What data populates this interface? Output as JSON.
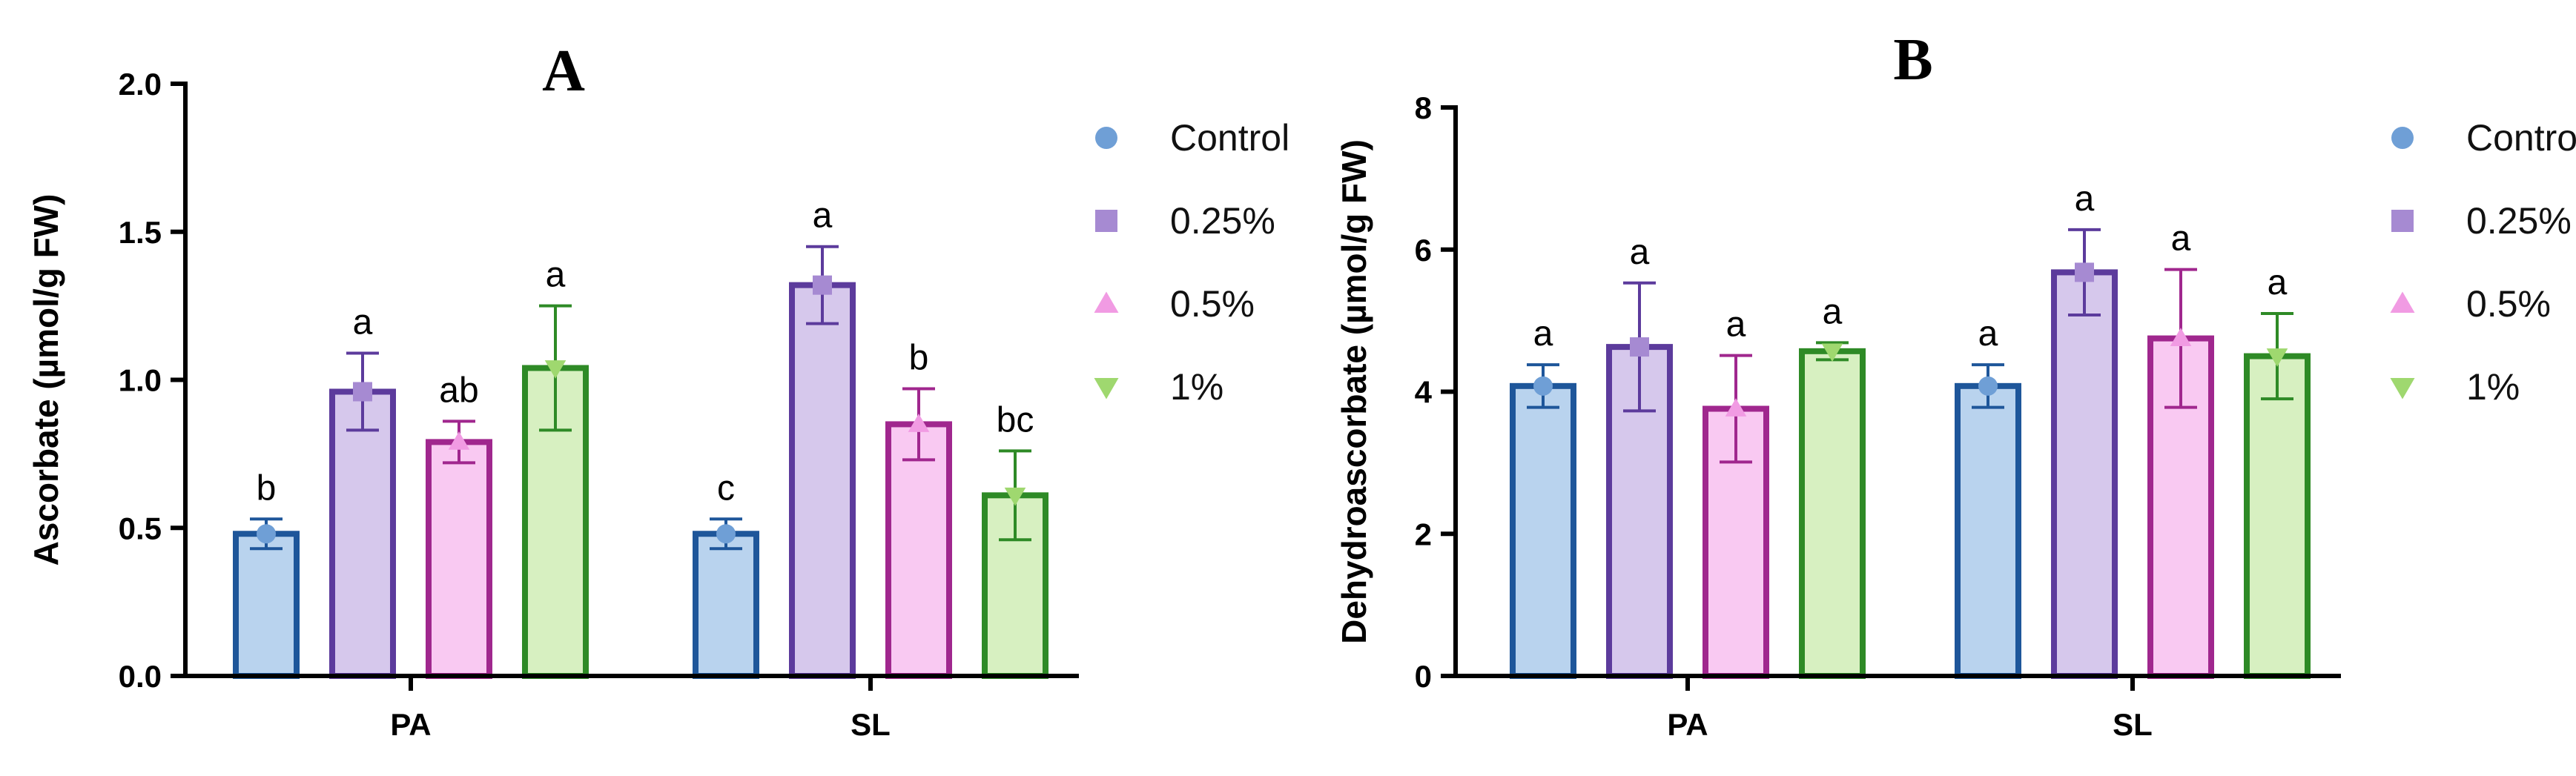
{
  "chart_data": [
    {
      "type": "bar",
      "title": "A",
      "ylabel": "Ascorbate (µmol/g FW)",
      "categories": [
        "PA",
        "SL"
      ],
      "ylim": [
        0,
        2.0
      ],
      "yticks": [
        "0.0",
        "0.5",
        "1.0",
        "1.5",
        "2.0"
      ],
      "error_bars": true,
      "legend_position": "right",
      "series": [
        {
          "name": "Control",
          "values": [
            0.48,
            0.48
          ],
          "errors": [
            0.05,
            0.05
          ],
          "letters": [
            "b",
            "c"
          ]
        },
        {
          "name": "0.25%",
          "values": [
            0.96,
            1.32
          ],
          "errors": [
            0.13,
            0.13
          ],
          "letters": [
            "a",
            "a"
          ]
        },
        {
          "name": "0.5%",
          "values": [
            0.79,
            0.85
          ],
          "errors": [
            0.07,
            0.12
          ],
          "letters": [
            "ab",
            "b"
          ]
        },
        {
          "name": "1%",
          "values": [
            1.04,
            0.61
          ],
          "errors": [
            0.21,
            0.15
          ],
          "letters": [
            "a",
            "bc"
          ]
        }
      ]
    },
    {
      "type": "bar",
      "title": "B",
      "ylabel": "Dehydroascorbate (µmol/g FW)",
      "categories": [
        "PA",
        "SL"
      ],
      "ylim": [
        0,
        8
      ],
      "yticks": [
        "0",
        "2",
        "4",
        "6",
        "8"
      ],
      "error_bars": true,
      "legend_position": "right",
      "series": [
        {
          "name": "Control",
          "values": [
            4.08,
            4.08
          ],
          "errors": [
            0.3,
            0.3
          ],
          "letters": [
            "a",
            "a"
          ]
        },
        {
          "name": "0.25%",
          "values": [
            4.63,
            5.68
          ],
          "errors": [
            0.9,
            0.6
          ],
          "letters": [
            "a",
            "a"
          ]
        },
        {
          "name": "0.5%",
          "values": [
            3.76,
            4.75
          ],
          "errors": [
            0.75,
            0.97
          ],
          "letters": [
            "a",
            "a"
          ]
        },
        {
          "name": "1%",
          "values": [
            4.57,
            4.5
          ],
          "errors": [
            0.12,
            0.6
          ],
          "letters": [
            "a",
            "a"
          ]
        }
      ]
    }
  ],
  "series_style": [
    {
      "fill": "#b9d3ee",
      "edge": "#1e569a",
      "marker": "circle",
      "marker_color": "#6f9fd6"
    },
    {
      "fill": "#d6c8ec",
      "edge": "#5c3b9c",
      "marker": "square",
      "marker_color": "#a68ad2"
    },
    {
      "fill": "#f9c9f2",
      "edge": "#a0278e",
      "marker": "triangle-up",
      "marker_color": "#f19be3"
    },
    {
      "fill": "#d7f0c1",
      "edge": "#2e8a26",
      "marker": "triangle-down",
      "marker_color": "#9fd86f"
    }
  ]
}
